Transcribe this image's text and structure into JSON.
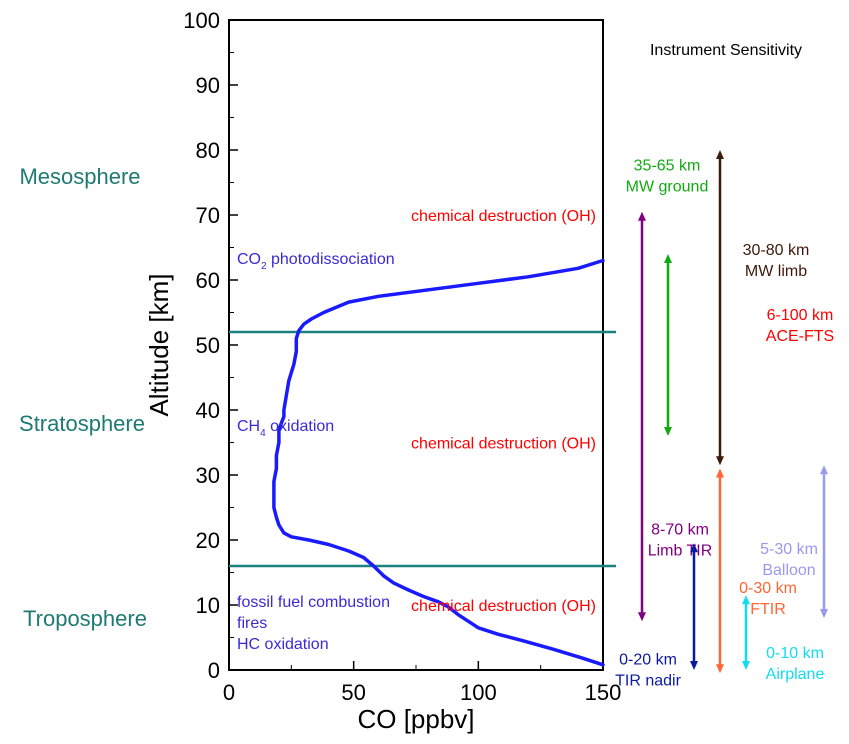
{
  "colors": {
    "profile": "#1a1aff",
    "boundary": "#1a8080",
    "region": "#1e7a72",
    "destruction": "#ff0000",
    "source": "#3a2ad6"
  },
  "chart_data": {
    "type": "line",
    "xlabel": "CO [ppbv]",
    "ylabel": "Altitude [km]",
    "xlim": [
      0,
      150
    ],
    "ylim": [
      0,
      100
    ],
    "xticks": [
      0,
      50,
      100,
      150
    ],
    "yticks": [
      0,
      10,
      20,
      30,
      40,
      50,
      60,
      70,
      80,
      90,
      100
    ],
    "series": [
      {
        "x": [
          150,
          142,
          130,
          118,
          108,
          100,
          96,
          92,
          88,
          84,
          78,
          72,
          66,
          62,
          58,
          54,
          48,
          40,
          32,
          25,
          22,
          20,
          19,
          18,
          18,
          18,
          19,
          19,
          20,
          20,
          22,
          22,
          24,
          26,
          27,
          27,
          28,
          30,
          33,
          38,
          48,
          60,
          80,
          100,
          120,
          140,
          150
        ],
        "y": [
          0.8,
          1.8,
          3.2,
          4.5,
          5.5,
          6.5,
          7.5,
          8.5,
          9.7,
          10.5,
          11.3,
          12.3,
          13.4,
          14.5,
          16,
          17.3,
          18.3,
          19.3,
          20,
          20.5,
          21.1,
          22.3,
          23.5,
          25,
          27,
          29,
          31,
          33,
          35,
          37,
          39,
          40,
          44.5,
          47,
          49,
          51,
          52.2,
          53.2,
          54,
          55,
          56.6,
          57.5,
          58.5,
          59.5,
          60.5,
          61.8,
          63
        ]
      }
    ],
    "boundaries_km": [
      52,
      16
    ],
    "region_labels": [
      {
        "text": "Mesosphere",
        "y": 76
      },
      {
        "text": "Stratosphere",
        "y": 38
      },
      {
        "text": "Troposphere",
        "y": 8
      }
    ],
    "annotations": {
      "co2_prefix": "CO",
      "co2_sub": "2",
      "co2_suffix": " photodissociation",
      "ch4_prefix": "CH",
      "ch4_sub": "4",
      "ch4_suffix": " oxidation",
      "source_lines": [
        "fossil fuel combustion",
        "fires",
        "HC oxidation"
      ],
      "destruction": "chemical destruction (OH)",
      "destruction_y": [
        70,
        35,
        10
      ]
    },
    "instrument_title": "Instrument Sensitivity",
    "instruments": [
      {
        "lines": [
          "35-65 km",
          "MW ground"
        ],
        "range": [
          35,
          65
        ],
        "color": "#11aa11",
        "label_y": 75
      },
      {
        "lines": [
          "30-80 km",
          "MW limb"
        ],
        "range": [
          30,
          80
        ],
        "color": "#3d1a0a",
        "label_y": 62
      },
      {
        "lines": [
          "6-100 km",
          "ACE-FTS"
        ],
        "range": [
          6,
          100
        ],
        "color": "#ff0000",
        "label_y": 52
      },
      {
        "lines": [
          "8-70 km",
          "Limb TIR"
        ],
        "range": [
          8,
          70
        ],
        "color": "#800080",
        "label_y": 19
      },
      {
        "lines": [
          "5-30 km",
          "Balloon"
        ],
        "range": [
          5,
          30
        ],
        "color": "#9999ee",
        "label_y": 16
      },
      {
        "lines": [
          "0-30 km",
          "FTIR"
        ],
        "range": [
          0,
          30
        ],
        "color": "#ff6633",
        "label_y": 10
      },
      {
        "lines": [
          "0-20 km",
          "TIR nadir"
        ],
        "range": [
          0,
          20
        ],
        "color": "#0a1aa0",
        "label_y": -1
      },
      {
        "lines": [
          "0-10 km",
          "Airplane"
        ],
        "range": [
          0,
          10
        ],
        "color": "#11ddee",
        "label_y": 0
      }
    ]
  }
}
